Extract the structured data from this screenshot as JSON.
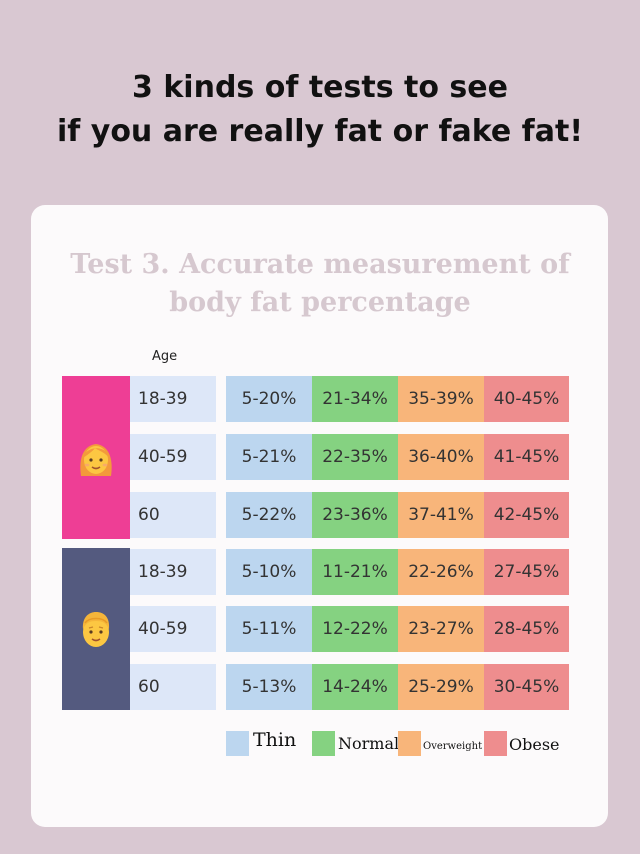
{
  "headline": {
    "line1": "3 kinds of tests to see",
    "line2": "if you are really fat or fake fat!"
  },
  "card": {
    "title_line1": "Test 3. Accurate measurement of",
    "title_line2": "body fat percentage",
    "age_header": "Age"
  },
  "groups": {
    "female": {
      "icon": "woman-face-icon",
      "color": "#ee3e95"
    },
    "male": {
      "icon": "man-face-icon",
      "color": "#545a7f"
    }
  },
  "rows": [
    {
      "age": "18-39",
      "thin": "5-20%",
      "normal": "21-34%",
      "overweight": "35-39%",
      "obese": "40-45%"
    },
    {
      "age": "40-59",
      "thin": "5-21%",
      "normal": "22-35%",
      "overweight": "36-40%",
      "obese": "41-45%"
    },
    {
      "age": "60",
      "thin": "5-22%",
      "normal": "23-36%",
      "overweight": "37-41%",
      "obese": "42-45%"
    },
    {
      "age": "18-39",
      "thin": "5-10%",
      "normal": "11-21%",
      "overweight": "22-26%",
      "obese": "27-45%"
    },
    {
      "age": "40-59",
      "thin": "5-11%",
      "normal": "12-22%",
      "overweight": "23-27%",
      "obese": "28-45%"
    },
    {
      "age": "60",
      "thin": "5-13%",
      "normal": "14-24%",
      "overweight": "25-29%",
      "obese": "30-45%"
    }
  ],
  "legend": {
    "thin": "Thin",
    "normal": "Normal",
    "overweight": "Overweight",
    "obese": "Obese"
  },
  "colors": {
    "thin": "#bcd6ef",
    "normal": "#85d281",
    "overweight": "#f8b57a",
    "obese": "#ee8d8e",
    "age_cell": "#dde7f8",
    "background": "#d9c8d2"
  }
}
